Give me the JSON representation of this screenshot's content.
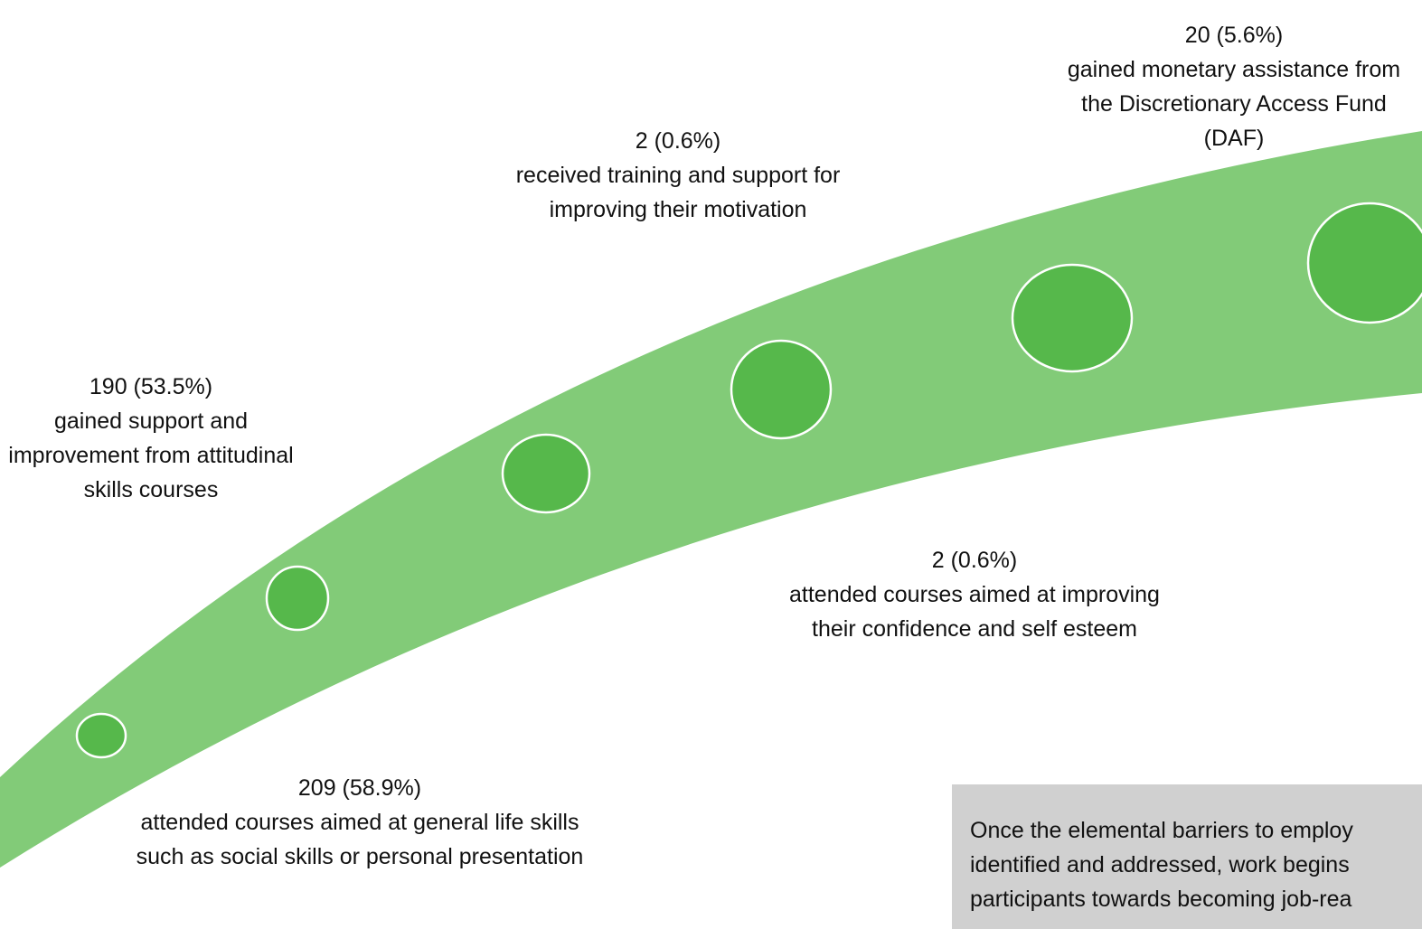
{
  "steps": [
    {
      "value": "209 (58.9%)",
      "description": "attended courses aimed at general life skills such as social skills or personal presentation"
    },
    {
      "value": "190 (53.5%)",
      "description": "gained support and improvement from attitudinal skills courses"
    },
    {
      "value": "2 (0.6%)",
      "description": "received training and support for improving their motivation"
    },
    {
      "value": "2 (0.6%)",
      "description": "attended courses aimed at improving their confidence and self esteem"
    },
    {
      "value": "20 (5.6%)",
      "description": "gained monetary assistance from the Discretionary Access Fund (DAF)"
    }
  ],
  "note": {
    "lines": [
      "Once the elemental barriers to employ",
      "identified and addressed, work begins",
      "participants towards becoming job-rea"
    ]
  }
}
